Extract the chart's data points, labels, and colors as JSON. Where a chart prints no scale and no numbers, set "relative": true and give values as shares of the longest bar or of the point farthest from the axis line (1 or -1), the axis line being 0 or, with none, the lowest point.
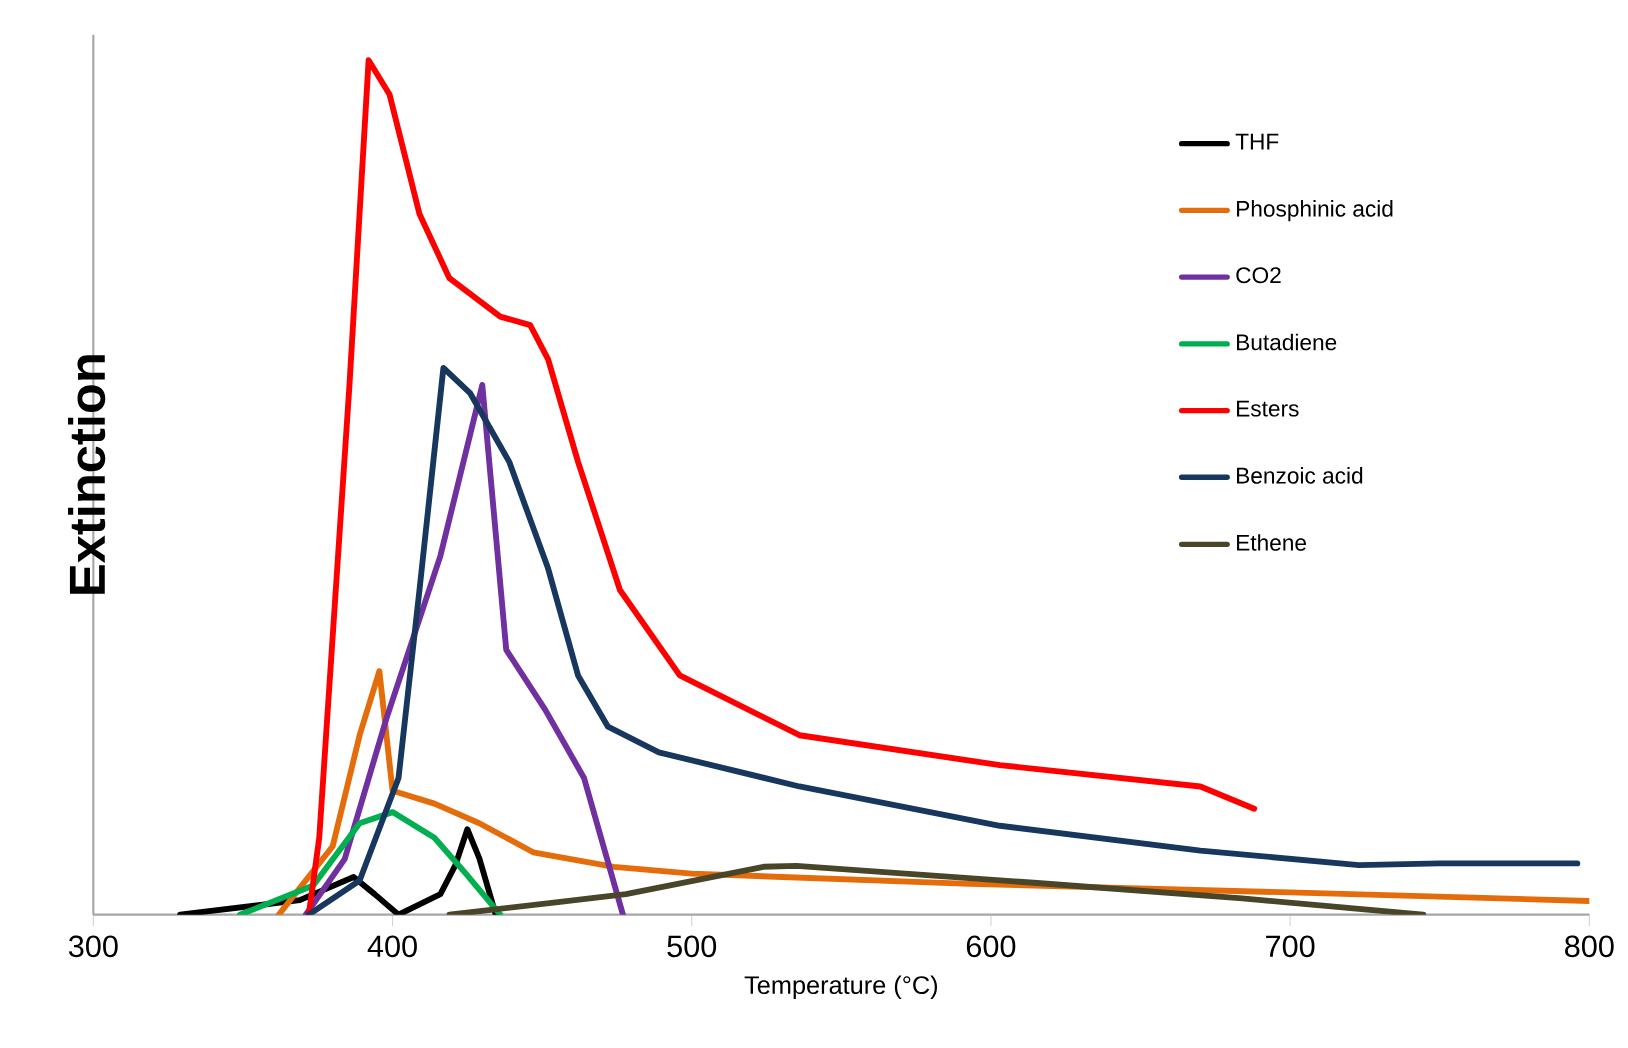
{
  "chart_data": {
    "type": "line",
    "xlabel": "Temperature (°C)",
    "ylabel": "Extinction",
    "relative": true,
    "xlim": [
      300,
      800
    ],
    "xticks": [
      300,
      400,
      500,
      600,
      700,
      800
    ],
    "legend": "top right",
    "line_style": "solid",
    "series": [
      {
        "name": "THF",
        "color": "#000000",
        "x": [
          329,
          369,
          387,
          394,
          402,
          416,
          421,
          425,
          429,
          434.5
        ],
        "values": [
          0,
          0.017,
          0.044,
          0.024,
          0,
          0.024,
          0.058,
          0.1,
          0.066,
          0
        ]
      },
      {
        "name": "Phosphinic acid",
        "color": "#e46c0a",
        "x": [
          362,
          380,
          389,
          395.6,
          400,
          414,
          429,
          447,
          474,
          500,
          593,
          700,
          800
        ],
        "values": [
          0,
          0.08,
          0.21,
          0.285,
          0.145,
          0.13,
          0.107,
          0.073,
          0.056,
          0.048,
          0.036,
          0.026,
          0.016
        ]
      },
      {
        "name": "CO2",
        "color": "#7030a0",
        "x": [
          371,
          384,
          398,
          416,
          430,
          438,
          451,
          464,
          477
        ],
        "values": [
          0,
          0.065,
          0.23,
          0.42,
          0.62,
          0.31,
          0.24,
          0.16,
          0
        ]
      },
      {
        "name": "Butadiene",
        "color": "#00b050",
        "x": [
          349,
          373.5,
          389,
          400,
          414,
          424,
          436
        ],
        "values": [
          0,
          0.034,
          0.107,
          0.12,
          0.09,
          0.05,
          0
        ]
      },
      {
        "name": "Esters",
        "color": "#ff0000",
        "x": [
          372,
          375.5,
          385.6,
          392,
          399,
          409,
          419,
          436,
          446,
          452,
          462,
          476,
          496,
          536,
          603,
          670,
          688
        ],
        "values": [
          0,
          0.09,
          0.62,
          1,
          0.96,
          0.82,
          0.745,
          0.7,
          0.69,
          0.65,
          0.53,
          0.38,
          0.28,
          0.21,
          0.175,
          0.15,
          0.124
        ]
      },
      {
        "name": "Benzoic acid",
        "color": "#17375e",
        "x": [
          372,
          389,
          402,
          409,
          417,
          426,
          439,
          452,
          462,
          472,
          489,
          536,
          603,
          670,
          723,
          750,
          796
        ],
        "values": [
          0,
          0.04,
          0.16,
          0.38,
          0.64,
          0.61,
          0.53,
          0.405,
          0.28,
          0.22,
          0.19,
          0.15,
          0.104,
          0.075,
          0.058,
          0.06,
          0.06
        ]
      },
      {
        "name": "Ethene",
        "color": "#494529",
        "x": [
          419,
          456,
          478,
          524,
          535,
          615.5,
          684,
          744.5
        ],
        "values": [
          0,
          0.015,
          0.024,
          0.056,
          0.057,
          0.037,
          0.019,
          0
        ]
      }
    ]
  }
}
